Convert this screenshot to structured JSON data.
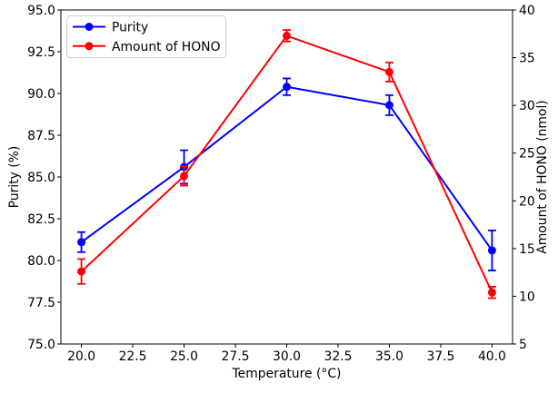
{
  "figure": {
    "background": "#ffffff"
  },
  "chart_data": {
    "type": "line",
    "title": "",
    "x": [
      20,
      25,
      30,
      35,
      40
    ],
    "xlabel": "Temperature (°C)",
    "xlim": [
      19,
      41
    ],
    "x_ticks": [
      "20.0",
      "22.5",
      "25.0",
      "27.5",
      "30.0",
      "32.5",
      "35.0",
      "37.5",
      "40.0"
    ],
    "grid": false,
    "left_axis": {
      "label": "Purity (%)",
      "lim": [
        75,
        95
      ],
      "ticks": [
        "75.0",
        "77.5",
        "80.0",
        "82.5",
        "85.0",
        "87.5",
        "90.0",
        "92.5",
        "95.0"
      ]
    },
    "right_axis": {
      "label": "Amount of HONO (nmol)",
      "lim": [
        5,
        40
      ],
      "ticks": [
        "5",
        "10",
        "15",
        "20",
        "25",
        "30",
        "35",
        "40"
      ]
    },
    "series": [
      {
        "name": "Purity",
        "axis": "left",
        "color": "#0000ff",
        "marker": "circle",
        "values": [
          81.1,
          85.6,
          90.4,
          89.3,
          80.6
        ],
        "errors": [
          0.6,
          1.0,
          0.5,
          0.6,
          1.2
        ]
      },
      {
        "name": "Amount of HONO",
        "axis": "right",
        "color": "#ff0000",
        "marker": "circle",
        "values": [
          12.6,
          22.6,
          37.3,
          33.5,
          10.4
        ],
        "errors": [
          1.3,
          1.0,
          0.6,
          1.0,
          0.6
        ]
      }
    ],
    "legend": {
      "position": "upper-left",
      "entries": [
        "Purity",
        "Amount of HONO"
      ],
      "border_color": "#cccccc",
      "background": "#ffffff"
    },
    "axis_color": "#000000"
  }
}
